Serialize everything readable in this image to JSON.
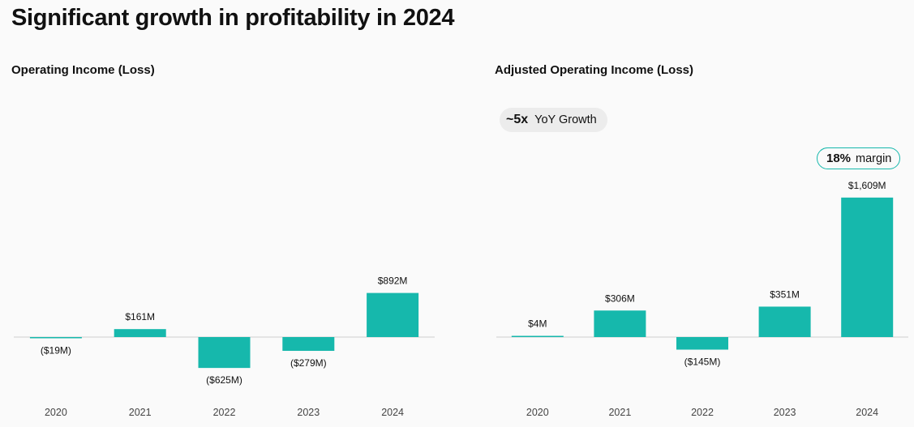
{
  "page": {
    "title": "Significant growth in profitability in 2024"
  },
  "colors": {
    "bar": "#16b8ac",
    "axis": "#cfcfcf",
    "text": "#111111",
    "year": "#444444"
  },
  "badges": {
    "growth": {
      "value": "~5x",
      "label": "YoY Growth"
    },
    "margin": {
      "value": "18%",
      "label": "margin"
    }
  },
  "chart_data": [
    {
      "type": "bar",
      "title": "Operating Income (Loss)",
      "categories": [
        "2020",
        "2021",
        "2022",
        "2023",
        "2024"
      ],
      "values": [
        -19,
        161,
        -625,
        -279,
        892
      ],
      "data_labels": [
        "($19M)",
        "$161M",
        "($625M)",
        "($279M)",
        "$892M"
      ],
      "unit": "$M",
      "grid": false,
      "legend": "none"
    },
    {
      "type": "bar",
      "title": "Adjusted Operating Income (Loss)",
      "categories": [
        "2020",
        "2021",
        "2022",
        "2023",
        "2024"
      ],
      "values": [
        4,
        306,
        -145,
        351,
        1609
      ],
      "data_labels": [
        "$4M",
        "$306M",
        "($145M)",
        "$351M",
        "$1,609M"
      ],
      "unit": "$M",
      "grid": false,
      "legend": "none"
    }
  ]
}
